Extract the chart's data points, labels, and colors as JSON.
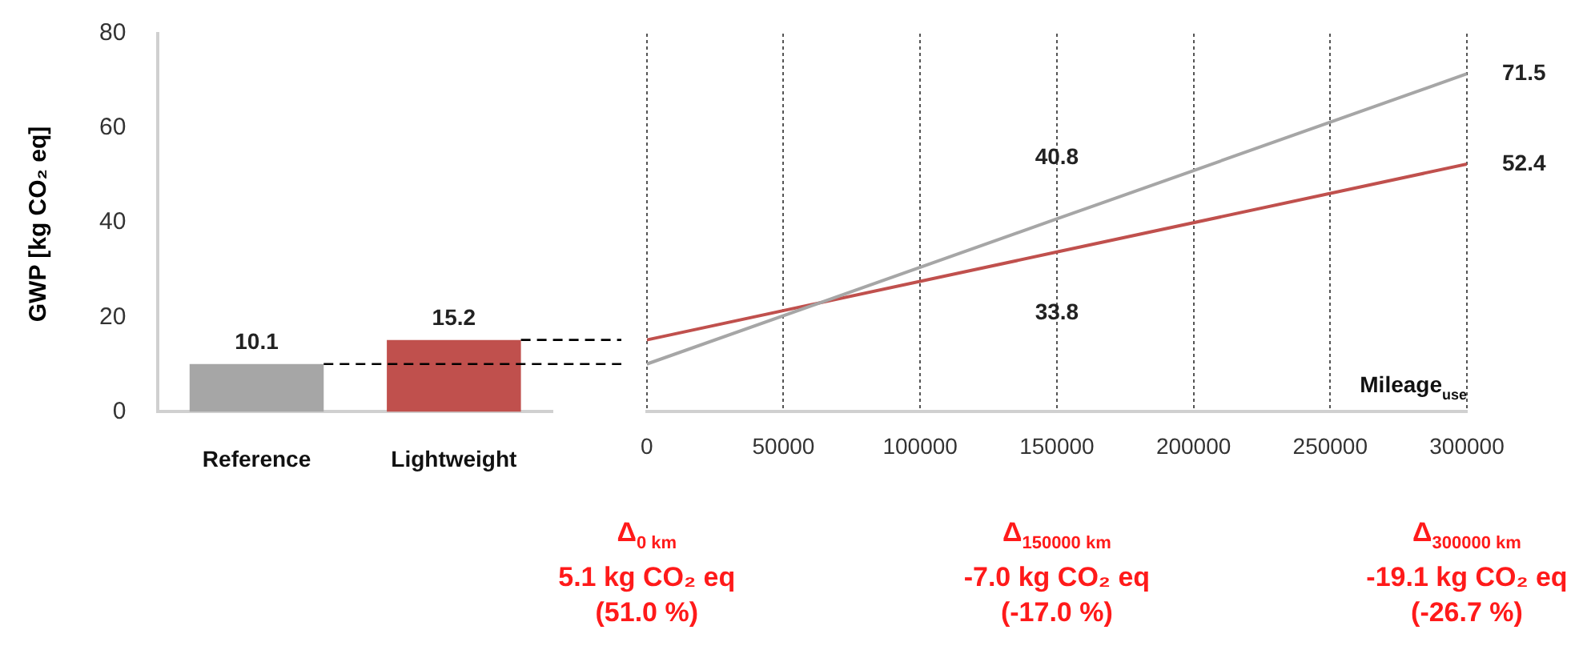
{
  "chart_data": [
    {
      "type": "bar",
      "ylabel": "GWP [kg CO₂ eq]",
      "categories": [
        "Reference",
        "Lightweight"
      ],
      "values": [
        10.1,
        15.2
      ],
      "colors": [
        "#a6a6a6",
        "#c0504d"
      ],
      "ylim": [
        0,
        80
      ],
      "yticks": [
        0,
        20,
        40,
        60,
        80
      ],
      "grid": false,
      "legend": false,
      "data_labels": true,
      "ref_lines": [
        {
          "axis": "y",
          "value": 10.1,
          "line_style": "dashed",
          "color": "#000000"
        },
        {
          "axis": "y",
          "value": 15.2,
          "line_style": "dashed",
          "color": "#000000"
        }
      ]
    },
    {
      "type": "line",
      "xlabel": "Mileage$_{use}$",
      "x": [
        0,
        150000,
        300000
      ],
      "xlim": [
        0,
        300000
      ],
      "xticks": [
        0,
        50000,
        100000,
        150000,
        200000,
        250000,
        300000
      ],
      "ylim": [
        0,
        80
      ],
      "tick_labels": "x",
      "grid": "x",
      "legend": false,
      "marker": "none",
      "line_style": "solid",
      "series": [
        {
          "color": "#a6a6a6",
          "values": [
            10.1,
            40.8,
            71.5
          ],
          "value_labels": [
            null,
            "40.8",
            "71.5"
          ]
        },
        {
          "color": "#c0504d",
          "values": [
            15.2,
            33.8,
            52.4
          ],
          "value_labels": [
            null,
            "33.8",
            "52.4"
          ]
        }
      ],
      "annotations": [
        "Δ$_{0 km}$\n5.1 kg CO₂ eq\n(51.0 %)",
        "Δ$_{150000 km}$\n-7.0 kg CO₂ eq\n(-17.0 %)",
        "Δ$_{300000 km}$\n-19.1 kg CO₂ eq\n(-26.7 %)"
      ]
    }
  ]
}
